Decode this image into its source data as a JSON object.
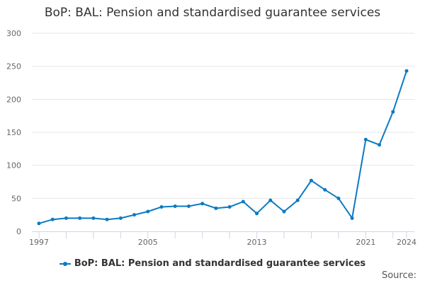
{
  "chart_data": {
    "type": "line",
    "title": "BoP: BAL: Pension and standardised guarantee services",
    "x": [
      1997,
      1998,
      1999,
      2000,
      2001,
      2002,
      2003,
      2004,
      2005,
      2006,
      2007,
      2008,
      2009,
      2010,
      2011,
      2012,
      2013,
      2014,
      2015,
      2016,
      2017,
      2018,
      2019,
      2020,
      2021,
      2022,
      2023,
      2024
    ],
    "series": [
      {
        "name": "BoP: BAL: Pension and standardised guarantee services",
        "values": [
          12,
          18,
          20,
          20,
          20,
          18,
          20,
          25,
          30,
          37,
          38,
          38,
          42,
          35,
          37,
          45,
          27,
          47,
          30,
          47,
          77,
          63,
          50,
          20,
          139,
          131,
          181,
          243
        ],
        "color": "#0a7ac4"
      }
    ],
    "xticks": [
      1997,
      2005,
      2013,
      2021,
      2024
    ],
    "yticks": [
      0,
      50,
      100,
      150,
      200,
      250,
      300
    ],
    "ylim": [
      0,
      300
    ],
    "xlim": [
      1997,
      2024
    ],
    "grid": "horizontal",
    "legend": "bottom",
    "source_label": "Source:"
  }
}
